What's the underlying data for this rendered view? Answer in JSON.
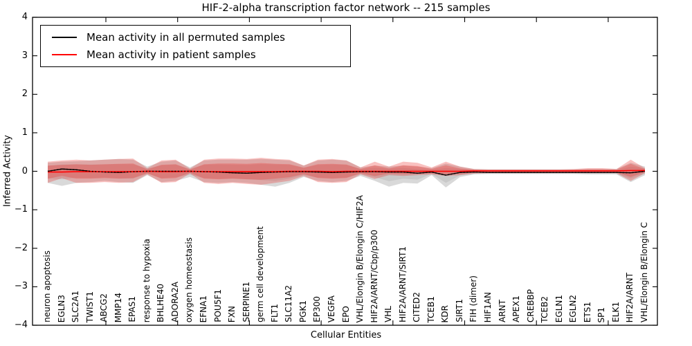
{
  "legend": {
    "items": [
      {
        "label": "Mean activity in all permuted samples",
        "color": "#000000"
      },
      {
        "label": "Mean activity in patient samples",
        "color": "#ff0000"
      }
    ]
  },
  "chart_data": {
    "type": "line",
    "title": "HIF-2-alpha transcription factor network -- 215 samples",
    "xlabel": "Cellular Entities",
    "ylabel": "Inferred Activity",
    "ylim": [
      -4,
      4
    ],
    "yticks": [
      4,
      3,
      2,
      1,
      0,
      -1,
      -2,
      -3,
      -4
    ],
    "ytick_labels": [
      "4",
      "3",
      "2",
      "1",
      "0",
      "−1",
      "−2",
      "−3",
      "−4"
    ],
    "grid": false,
    "legend_position": "upper left",
    "band_meaning": "shaded region around each mean line",
    "categories": [
      "neuron apoptosis",
      "EGLN3",
      "SLC2A1",
      "TWIST1",
      "ABCG2",
      "MMP14",
      "EPAS1",
      "response to hypoxia",
      "BHLHE40",
      "ADORA2A",
      "oxygen homeostasis",
      "EFNA1",
      "POU5F1",
      "FXN",
      "SERPINE1",
      "germ cell development",
      "FLT1",
      "SLC11A2",
      "PGK1",
      "EP300",
      "VEGFA",
      "EPO",
      "VHL/Elongin B/Elongin C/HIF2A",
      "HIF2A/ARNT/Cbp/p300",
      "VHL",
      "HIF2A/ARNT/SIRT1",
      "CITED2",
      "TCEB1",
      "KDR",
      "SIRT1",
      "FIH (dimer)",
      "HIF1AN",
      "ARNT",
      "APEX1",
      "CREBBP",
      "TCEB2",
      "EGLN1",
      "EGLN2",
      "ETS1",
      "SP1",
      "ELK1",
      "HIF2A/ARNT",
      "VHL/Elongin B/Elongin C"
    ],
    "series": [
      {
        "name": "Mean activity in all permuted samples",
        "color": "#000000",
        "line_style": "solid with dotted overlay",
        "band_color": "#9a9a9a",
        "values": [
          0.0,
          0.06,
          0.04,
          0.0,
          -0.02,
          -0.03,
          -0.01,
          0.0,
          0.0,
          0.0,
          0.0,
          -0.01,
          -0.02,
          -0.04,
          -0.05,
          -0.03,
          -0.02,
          -0.01,
          -0.01,
          -0.02,
          -0.03,
          -0.02,
          -0.01,
          -0.01,
          -0.02,
          -0.02,
          -0.05,
          -0.02,
          -0.1,
          -0.03,
          -0.02,
          -0.03,
          -0.03,
          -0.03,
          -0.03,
          -0.03,
          -0.03,
          -0.03,
          -0.03,
          -0.03,
          -0.03,
          -0.04,
          0.0
        ],
        "band_lo": [
          -0.3,
          -0.38,
          -0.3,
          -0.28,
          -0.25,
          -0.28,
          -0.3,
          -0.1,
          -0.28,
          -0.25,
          -0.15,
          -0.28,
          -0.3,
          -0.28,
          -0.3,
          -0.35,
          -0.4,
          -0.3,
          -0.15,
          -0.25,
          -0.28,
          -0.25,
          -0.12,
          -0.25,
          -0.4,
          -0.3,
          -0.32,
          -0.1,
          -0.42,
          -0.15,
          -0.08,
          -0.07,
          -0.07,
          -0.07,
          -0.07,
          -0.07,
          -0.07,
          -0.07,
          -0.08,
          -0.08,
          -0.08,
          -0.28,
          -0.1
        ],
        "band_hi": [
          0.22,
          0.25,
          0.26,
          0.28,
          0.3,
          0.32,
          0.3,
          0.12,
          0.25,
          0.28,
          0.1,
          0.28,
          0.3,
          0.3,
          0.3,
          0.32,
          0.3,
          0.28,
          0.15,
          0.28,
          0.3,
          0.28,
          0.1,
          0.15,
          0.12,
          0.15,
          0.12,
          0.08,
          0.2,
          0.12,
          0.06,
          0.05,
          0.05,
          0.05,
          0.05,
          0.05,
          0.05,
          0.05,
          0.06,
          0.06,
          0.06,
          0.22,
          0.12
        ]
      },
      {
        "name": "Mean activity in patient samples",
        "color": "#ff0000",
        "line_style": "solid",
        "band_color": "#e8524c",
        "values": [
          -0.02,
          -0.02,
          -0.01,
          -0.01,
          -0.01,
          -0.01,
          -0.01,
          0.0,
          -0.01,
          -0.01,
          0.0,
          -0.01,
          -0.01,
          -0.01,
          -0.01,
          -0.01,
          -0.01,
          0.0,
          0.0,
          0.0,
          -0.01,
          0.0,
          0.0,
          0.0,
          0.0,
          0.0,
          0.0,
          0.0,
          0.0,
          0.0,
          0.01,
          0.01,
          0.01,
          0.01,
          0.01,
          0.01,
          0.01,
          0.01,
          0.01,
          0.01,
          0.01,
          0.02,
          0.02
        ],
        "band_lo": [
          -0.3,
          -0.18,
          -0.3,
          -0.3,
          -0.28,
          -0.3,
          -0.28,
          -0.08,
          -0.3,
          -0.28,
          -0.06,
          -0.3,
          -0.33,
          -0.3,
          -0.33,
          -0.35,
          -0.3,
          -0.25,
          -0.12,
          -0.28,
          -0.3,
          -0.28,
          -0.08,
          -0.2,
          -0.1,
          -0.12,
          -0.1,
          -0.08,
          -0.12,
          -0.1,
          -0.06,
          -0.05,
          -0.05,
          -0.05,
          -0.05,
          -0.05,
          -0.05,
          -0.05,
          -0.05,
          -0.05,
          -0.05,
          -0.25,
          -0.05
        ],
        "band_hi": [
          0.25,
          0.28,
          0.3,
          0.28,
          0.3,
          0.32,
          0.33,
          0.08,
          0.28,
          0.3,
          0.07,
          0.3,
          0.33,
          0.33,
          0.32,
          0.35,
          0.32,
          0.3,
          0.15,
          0.3,
          0.32,
          0.28,
          0.1,
          0.25,
          0.12,
          0.25,
          0.22,
          0.1,
          0.25,
          0.12,
          0.06,
          0.05,
          0.05,
          0.05,
          0.05,
          0.05,
          0.05,
          0.06,
          0.08,
          0.08,
          0.06,
          0.3,
          0.08
        ]
      }
    ]
  }
}
